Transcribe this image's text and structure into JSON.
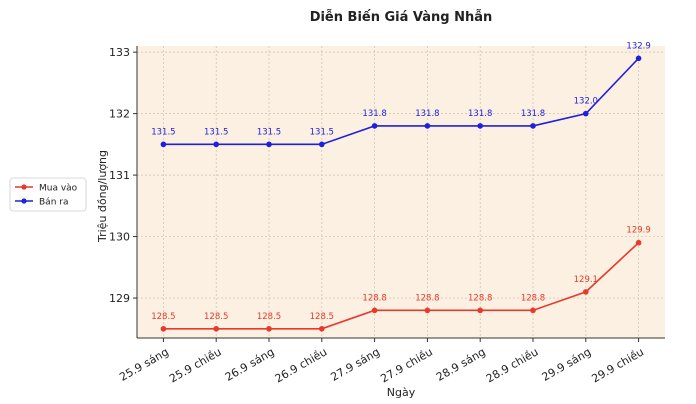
{
  "chart_data": {
    "type": "line",
    "title": "Diễn Biến Giá Vàng Nhẫn",
    "xlabel": "Ngày",
    "ylabel": "Triệu đồng/lượng",
    "categories": [
      "25.9 sáng",
      "25.9 chiều",
      "26.9 sáng",
      "26.9 chiều",
      "27.9 sáng",
      "27.9 chiều",
      "28.9 sáng",
      "28.9 chiều",
      "29.9 sáng",
      "29.9 chiều"
    ],
    "ylim": [
      128.35,
      133.1
    ],
    "yticks": [
      129,
      130,
      131,
      132,
      133
    ],
    "grid": true,
    "legend_position": "left",
    "background": "#fbf0e1",
    "series": [
      {
        "name": "Mua vào",
        "color": "#e8392b",
        "values": [
          128.5,
          128.5,
          128.5,
          128.5,
          128.8,
          128.8,
          128.8,
          128.8,
          129.1,
          129.9
        ],
        "labels": [
          "128.5",
          "128.5",
          "128.5",
          "128.5",
          "128.8",
          "128.8",
          "128.8",
          "128.8",
          "129.1",
          "129.9"
        ]
      },
      {
        "name": "Bán ra",
        "color": "#1f1fdc",
        "values": [
          131.5,
          131.5,
          131.5,
          131.5,
          131.8,
          131.8,
          131.8,
          131.8,
          132.0,
          132.9
        ],
        "labels": [
          "131.5",
          "131.5",
          "131.5",
          "131.5",
          "131.8",
          "131.8",
          "131.8",
          "131.8",
          "132.0",
          "132.9"
        ]
      }
    ]
  }
}
